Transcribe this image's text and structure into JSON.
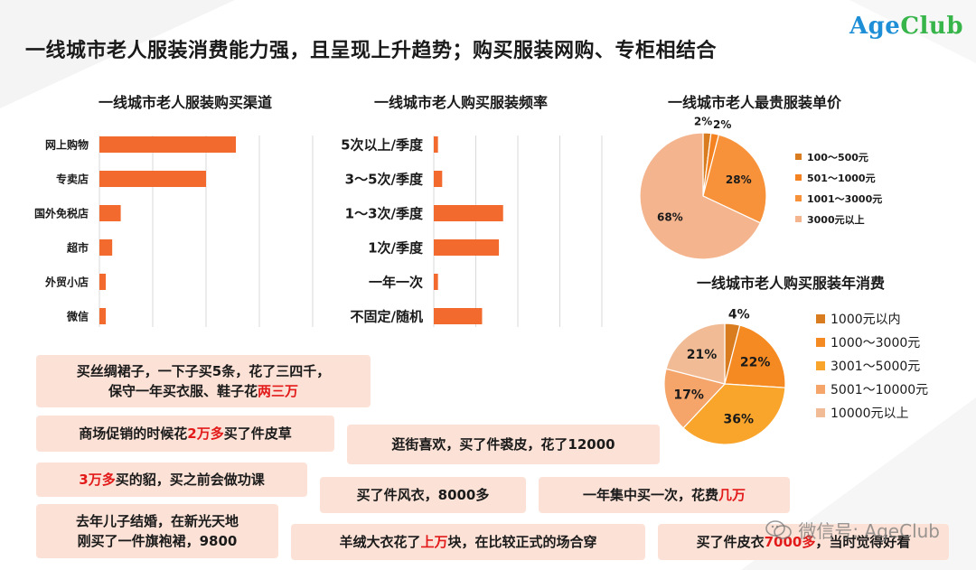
{
  "title": "一线城市老人服装消费能力强，且呈现上升趋势；购买服装网购、专柜相结合",
  "logo": {
    "part1": "Age",
    "part2": "Club"
  },
  "colors": {
    "bar": "#f26a2e",
    "pie1": [
      "#d97b1f",
      "#f58220",
      "#f7923a",
      "#f3b48e"
    ],
    "pie2": [
      "#d97b1f",
      "#f58a22",
      "#f9a52b",
      "#f5a46a",
      "#f1bc95"
    ],
    "quote_bg": "#fce2d6",
    "highlight": "#e21a1a"
  },
  "chart_data": [
    {
      "type": "bar",
      "orientation": "horizontal",
      "title": "一线城市老人服装购买渠道",
      "categories": [
        "网上购物",
        "专卖店",
        "国外免税店",
        "超市",
        "外贸小店",
        "微信"
      ],
      "values": [
        64,
        50,
        10,
        6,
        3,
        3
      ],
      "xlim": [
        0,
        100
      ],
      "grid": true
    },
    {
      "type": "bar",
      "orientation": "horizontal",
      "title": "一线城市老人购买服装频率",
      "categories": [
        "5次以上/季度",
        "3～5次/季度",
        "1～3次/季度",
        "1次/季度",
        "一年一次",
        "不固定/随机"
      ],
      "values": [
        2,
        4,
        33,
        31,
        2,
        23
      ],
      "xlim": [
        0,
        80
      ],
      "grid": true
    },
    {
      "type": "pie",
      "title": "一线城市老人最贵服装单价",
      "categories": [
        "100～500元",
        "501～1000元",
        "1001～3000元",
        "3000元以上"
      ],
      "values": [
        2,
        2,
        28,
        68
      ],
      "labels": [
        "2%",
        "2%",
        "28%",
        "68%"
      ],
      "legend": "right"
    },
    {
      "type": "pie",
      "title": "一线城市老人购买服装年消费",
      "categories": [
        "1000元以内",
        "1000～3000元",
        "3001～5000元",
        "5001～10000元",
        "10000元以上"
      ],
      "values": [
        4,
        22,
        36,
        17,
        21
      ],
      "labels": [
        "4%",
        "22%",
        "36%",
        "17%",
        "21%"
      ],
      "legend": "right"
    }
  ],
  "quotes": [
    {
      "segments": [
        {
          "text": "买丝绸裙子，一下子买5条，花了三四千，",
          "red": false
        },
        {
          "text": "\n",
          "red": false
        },
        {
          "text": "保守一年买衣服、鞋子花",
          "red": false
        },
        {
          "text": "两三万",
          "red": true
        }
      ]
    },
    {
      "segments": [
        {
          "text": "商场促销的时候花",
          "red": false
        },
        {
          "text": "2万多",
          "red": true
        },
        {
          "text": "买了件皮草",
          "red": false
        }
      ]
    },
    {
      "segments": [
        {
          "text": "逛街喜欢，买了件裘皮，花了12000",
          "red": false
        }
      ]
    },
    {
      "segments": [
        {
          "text": "3万多",
          "red": true
        },
        {
          "text": "买的貂，买之前会做功课",
          "red": false
        }
      ]
    },
    {
      "segments": [
        {
          "text": "买了件风衣，8000多",
          "red": false
        }
      ]
    },
    {
      "segments": [
        {
          "text": "一年集中买一次，花费",
          "red": false
        },
        {
          "text": "几万",
          "red": true
        }
      ]
    },
    {
      "segments": [
        {
          "text": "去年儿子结婚，在新光天地",
          "red": false
        },
        {
          "text": "\n",
          "red": false
        },
        {
          "text": "刚买了一件旗袍裙，9800",
          "red": false
        }
      ]
    },
    {
      "segments": [
        {
          "text": "羊绒大衣花了",
          "red": false
        },
        {
          "text": "上万",
          "red": true
        },
        {
          "text": "块，在比较正式的场合穿",
          "red": false
        }
      ]
    },
    {
      "segments": [
        {
          "text": "买了件皮衣",
          "red": false
        },
        {
          "text": "7000多",
          "red": true
        },
        {
          "text": "，当时觉得好看",
          "red": false
        }
      ]
    }
  ],
  "watermark": "微信号: AgeClub"
}
